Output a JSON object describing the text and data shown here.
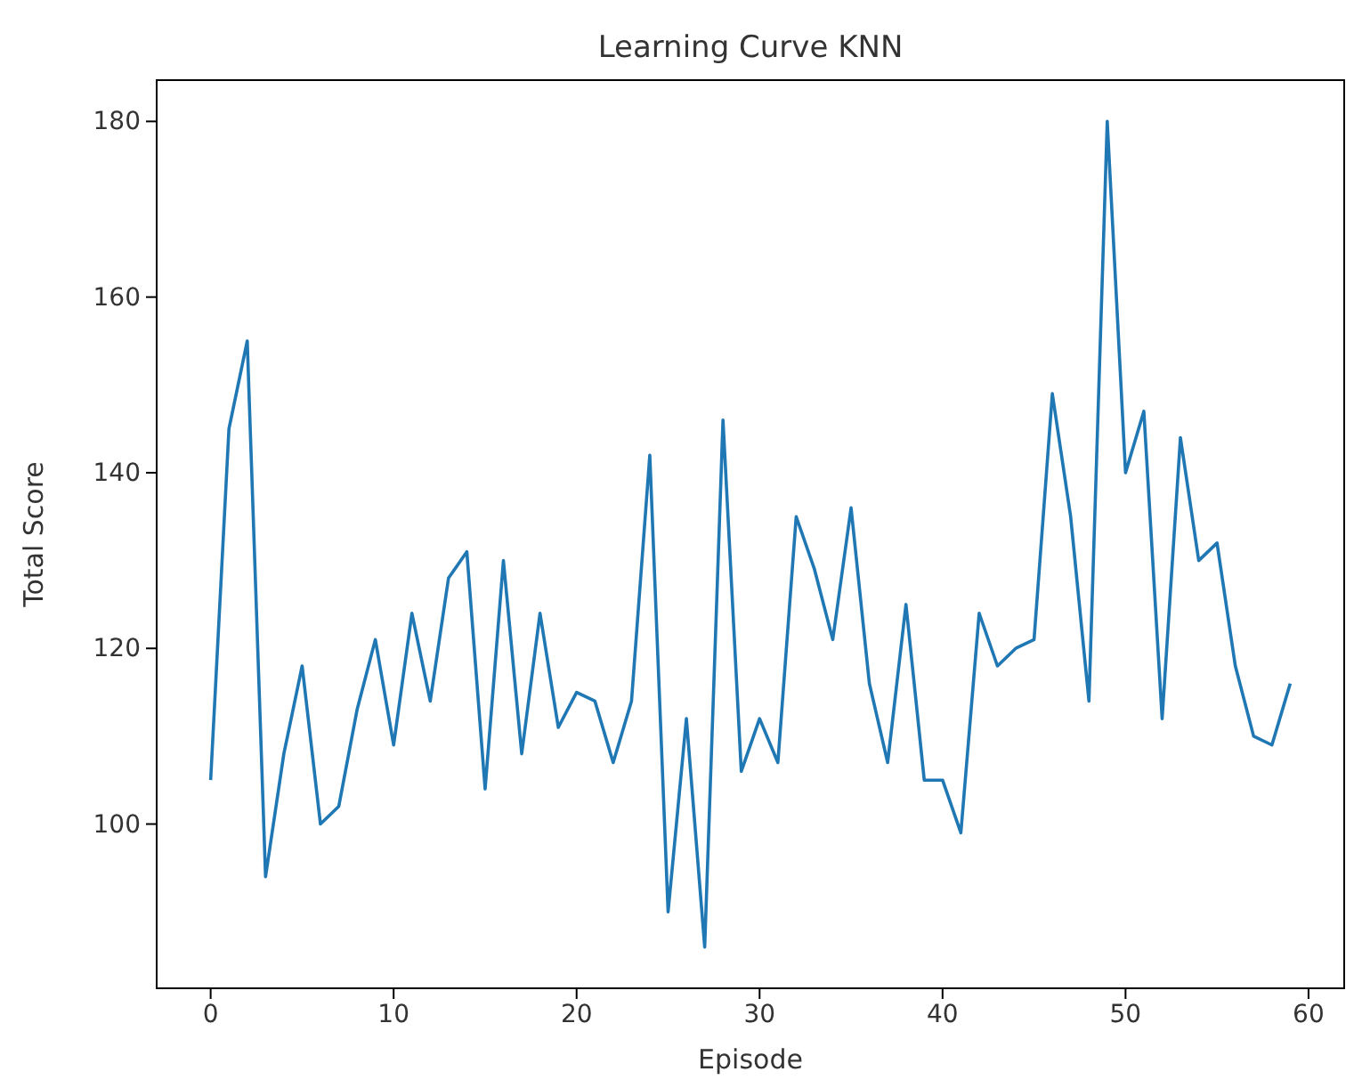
{
  "chart_data": {
    "type": "line",
    "title": "Learning Curve KNN",
    "xlabel": "Episode",
    "ylabel": "Total Score",
    "x": [
      0,
      1,
      2,
      3,
      4,
      5,
      6,
      7,
      8,
      9,
      10,
      11,
      12,
      13,
      14,
      15,
      16,
      17,
      18,
      19,
      20,
      21,
      22,
      23,
      24,
      25,
      26,
      27,
      28,
      29,
      30,
      31,
      32,
      33,
      34,
      35,
      36,
      37,
      38,
      39,
      40,
      41,
      42,
      43,
      44,
      45,
      46,
      47,
      48,
      49,
      50,
      51,
      52,
      53,
      54,
      55,
      56,
      57,
      58,
      59
    ],
    "series": [
      {
        "color": "#1f77b4",
        "values": [
          105,
          145,
          155,
          94,
          108,
          118,
          100,
          102,
          113,
          121,
          109,
          124,
          114,
          128,
          131,
          104,
          130,
          108,
          124,
          111,
          115,
          114,
          107,
          114,
          142,
          90,
          112,
          86,
          146,
          106,
          112,
          107,
          135,
          129,
          121,
          136,
          116,
          107,
          125,
          105,
          105,
          99,
          124,
          118,
          120,
          121,
          149,
          135,
          114,
          180,
          140,
          147,
          112,
          144,
          130,
          132,
          118,
          110,
          109,
          116
        ]
      }
    ],
    "xlim": [
      -2.95,
      61.95
    ],
    "ylim": [
      81.3,
      184.7
    ],
    "xticks": [
      0,
      10,
      20,
      30,
      40,
      50,
      60
    ],
    "yticks": [
      100,
      120,
      140,
      160,
      180
    ],
    "grid": false,
    "marker": "none",
    "line_style": "solid"
  }
}
